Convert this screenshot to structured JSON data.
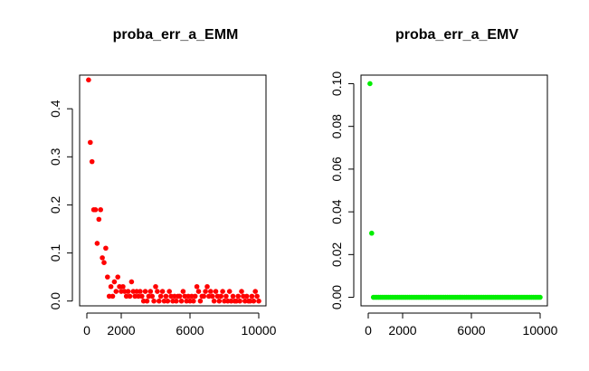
{
  "chart_data": [
    {
      "type": "scatter",
      "title": "proba_err_a_EMM",
      "xlabel": "",
      "ylabel": "",
      "color": "#ff0000",
      "xlim": [
        0,
        10000
      ],
      "ylim": [
        -0.01,
        0.47
      ],
      "xticks": [
        0,
        2000,
        6000,
        10000
      ],
      "yticks": [
        0.0,
        0.1,
        0.2,
        0.3,
        0.4
      ],
      "xtick_labels": [
        "0",
        "2000",
        "6000",
        "10000"
      ],
      "ytick_labels": [
        "0.0",
        "0.1",
        "0.2",
        "0.3",
        "0.4"
      ],
      "series": [
        {
          "x": [
            100,
            200,
            300,
            400,
            500,
            600,
            700,
            800,
            900,
            1000,
            1100,
            1200,
            1300,
            1400,
            1500,
            1600,
            1700,
            1800,
            1900,
            2000,
            2100,
            2200,
            2300,
            2400,
            2500,
            2600,
            2700,
            2800,
            2900,
            3000,
            3100,
            3200,
            3300,
            3400,
            3500,
            3600,
            3700,
            3800,
            3900,
            4000,
            4100,
            4200,
            4300,
            4400,
            4500,
            4600,
            4700,
            4800,
            4900,
            5000,
            5100,
            5200,
            5300,
            5400,
            5500,
            5600,
            5700,
            5800,
            5900,
            6000,
            6100,
            6200,
            6300,
            6400,
            6500,
            6600,
            6700,
            6800,
            6900,
            7000,
            7100,
            7200,
            7300,
            7400,
            7500,
            7600,
            7700,
            7800,
            7900,
            8000,
            8100,
            8200,
            8300,
            8400,
            8500,
            8600,
            8700,
            8800,
            8900,
            9000,
            9100,
            9200,
            9300,
            9400,
            9500,
            9600,
            9700,
            9800,
            9900,
            10000
          ],
          "y": [
            0.46,
            0.33,
            0.29,
            0.19,
            0.19,
            0.12,
            0.17,
            0.19,
            0.09,
            0.08,
            0.11,
            0.05,
            0.01,
            0.03,
            0.01,
            0.04,
            0.02,
            0.05,
            0.03,
            0.02,
            0.03,
            0.02,
            0.01,
            0.02,
            0.01,
            0.04,
            0.02,
            0.01,
            0.02,
            0.01,
            0.02,
            0.01,
            0.0,
            0.02,
            0.0,
            0.01,
            0.02,
            0.01,
            0.0,
            0.03,
            0.02,
            0.0,
            0.01,
            0.02,
            0.0,
            0.01,
            0.0,
            0.02,
            0.01,
            0.0,
            0.01,
            0.0,
            0.01,
            0.01,
            0.0,
            0.02,
            0.01,
            0.0,
            0.01,
            0.0,
            0.01,
            0.0,
            0.01,
            0.03,
            0.02,
            0.0,
            0.01,
            0.01,
            0.02,
            0.03,
            0.01,
            0.02,
            0.01,
            0.0,
            0.02,
            0.01,
            0.0,
            0.01,
            0.02,
            0.0,
            0.01,
            0.0,
            0.02,
            0.0,
            0.01,
            0.0,
            0.0,
            0.01,
            0.0,
            0.02,
            0.01,
            0.0,
            0.01,
            0.0,
            0.0,
            0.01,
            0.0,
            0.02,
            0.01,
            0.0
          ]
        }
      ]
    },
    {
      "type": "scatter",
      "title": "proba_err_a_EMV",
      "xlabel": "",
      "ylabel": "",
      "color": "#00ee00",
      "xlim": [
        0,
        10000
      ],
      "ylim": [
        -0.004,
        0.104
      ],
      "xticks": [
        0,
        2000,
        6000,
        10000
      ],
      "yticks": [
        0.0,
        0.02,
        0.04,
        0.06,
        0.08,
        0.1
      ],
      "xtick_labels": [
        "0",
        "2000",
        "6000",
        "10000"
      ],
      "ytick_labels": [
        "0.00",
        "0.02",
        "0.04",
        "0.06",
        "0.08",
        "0.10"
      ],
      "series": [
        {
          "x": [
            100,
            200,
            300,
            400,
            500,
            600,
            700,
            800,
            900,
            1000,
            1100,
            1200,
            1300,
            1400,
            1500,
            1600,
            1700,
            1800,
            1900,
            2000,
            2100,
            2200,
            2300,
            2400,
            2500,
            2600,
            2700,
            2800,
            2900,
            3000,
            3100,
            3200,
            3300,
            3400,
            3500,
            3600,
            3700,
            3800,
            3900,
            4000,
            4100,
            4200,
            4300,
            4400,
            4500,
            4600,
            4700,
            4800,
            4900,
            5000,
            5100,
            5200,
            5300,
            5400,
            5500,
            5600,
            5700,
            5800,
            5900,
            6000,
            6100,
            6200,
            6300,
            6400,
            6500,
            6600,
            6700,
            6800,
            6900,
            7000,
            7100,
            7200,
            7300,
            7400,
            7500,
            7600,
            7700,
            7800,
            7900,
            8000,
            8100,
            8200,
            8300,
            8400,
            8500,
            8600,
            8700,
            8800,
            8900,
            9000,
            9100,
            9200,
            9300,
            9400,
            9500,
            9600,
            9700,
            9800,
            9900,
            10000
          ],
          "y": [
            0.1,
            0.03,
            0,
            0,
            0,
            0,
            0,
            0,
            0,
            0,
            0,
            0,
            0,
            0,
            0,
            0,
            0,
            0,
            0,
            0,
            0,
            0,
            0,
            0,
            0,
            0,
            0,
            0,
            0,
            0,
            0,
            0,
            0,
            0,
            0,
            0,
            0,
            0,
            0,
            0,
            0,
            0,
            0,
            0,
            0,
            0,
            0,
            0,
            0,
            0,
            0,
            0,
            0,
            0,
            0,
            0,
            0,
            0,
            0,
            0,
            0,
            0,
            0,
            0,
            0,
            0,
            0,
            0,
            0,
            0,
            0,
            0,
            0,
            0,
            0,
            0,
            0,
            0,
            0,
            0,
            0,
            0,
            0,
            0,
            0,
            0,
            0,
            0,
            0,
            0,
            0,
            0,
            0,
            0,
            0,
            0,
            0,
            0,
            0,
            0
          ]
        }
      ]
    }
  ]
}
